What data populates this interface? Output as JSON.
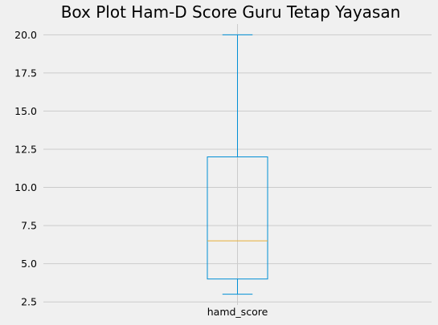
{
  "chart_data": {
    "type": "box",
    "title": "Box Plot Ham-D Score Guru Tetap Yayasan",
    "categories": [
      "hamd_score"
    ],
    "boxes": [
      {
        "name": "hamd_score",
        "whisker_low": 3.0,
        "q1": 4.0,
        "median": 6.5,
        "q3": 12.0,
        "whisker_high": 20.0
      }
    ],
    "xlabel": "",
    "ylabel": "",
    "ylim": [
      2.3,
      20.7
    ],
    "yticks": [
      2.5,
      5.0,
      7.5,
      10.0,
      12.5,
      15.0,
      17.5,
      20.0
    ],
    "grid": true,
    "colors": {
      "background": "#f0f0f0",
      "grid": "#cbcbcb",
      "box": "#008fd5",
      "median": "#e5ae38",
      "text": "#000000"
    }
  }
}
